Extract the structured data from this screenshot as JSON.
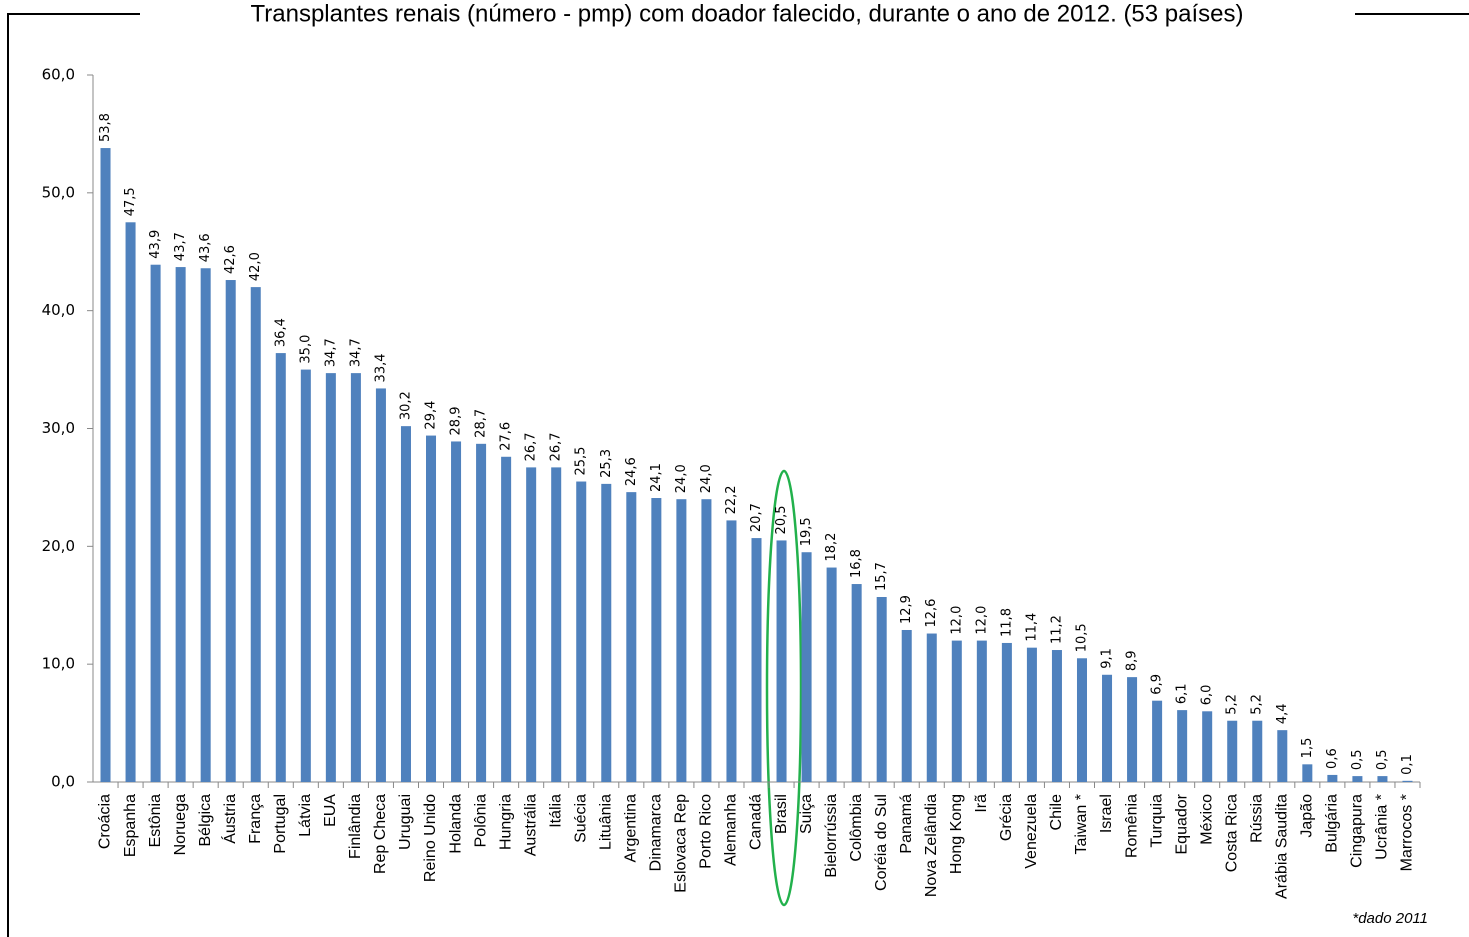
{
  "chart_data": {
    "type": "bar",
    "title": "Transplantes renais (número - pmp) com doador falecido, durante o ano de 2012. (53 países)",
    "footnote": "*dado 2011",
    "categories": [
      "Croácia",
      "Espanha",
      "Estônia",
      "Noruega",
      "Bélgica",
      "Áustria",
      "França",
      "Portugal",
      "Látvia",
      "EUA",
      "Finlândia",
      "Rep Checa",
      "Uruguai",
      "Reino Unido",
      "Holanda",
      "Polônia",
      "Hungria",
      "Austrália",
      "Itália",
      "Suécia",
      "Lituânia",
      "Argentina",
      "Dinamarca",
      "Eslovaca Rep",
      "Porto Rico",
      "Alemanha",
      "Canadá",
      "Brasil",
      "Suiça",
      "Bielorrússia",
      "Colômbia",
      "Coréia do Sul",
      "Panamá",
      "Nova Zelândia",
      "Hong Kong",
      "Irã",
      "Grécia",
      "Venezuela",
      "Chile",
      "Taiwan *",
      "Israel",
      "Romênia",
      "Turquia",
      "Equador",
      "México",
      "Costa Rica",
      "Rússia",
      "Arábia Saudita",
      "Japão",
      "Bulgária",
      "Cingapura",
      "Ucrânia *",
      "Marrocos *"
    ],
    "values": [
      53.8,
      47.5,
      43.9,
      43.7,
      43.6,
      42.6,
      42.0,
      36.4,
      35.0,
      34.7,
      34.7,
      33.4,
      30.2,
      29.4,
      28.9,
      28.7,
      27.6,
      26.7,
      26.7,
      25.5,
      25.3,
      24.6,
      24.1,
      24.0,
      24.0,
      22.2,
      20.7,
      20.5,
      19.5,
      18.2,
      16.8,
      15.7,
      12.9,
      12.6,
      12.0,
      12.0,
      11.8,
      11.4,
      11.2,
      10.5,
      9.1,
      8.9,
      6.9,
      6.1,
      6.0,
      5.2,
      5.2,
      4.4,
      1.5,
      0.6,
      0.5,
      0.5,
      0.1
    ],
    "value_labels": [
      "53,8",
      "47,5",
      "43,9",
      "43,7",
      "43,6",
      "42,6",
      "42,0",
      "36,4",
      "35,0",
      "34,7",
      "34,7",
      "33,4",
      "30,2",
      "29,4",
      "28,9",
      "28,7",
      "27,6",
      "26,7",
      "26,7",
      "25,5",
      "25,3",
      "24,6",
      "24,1",
      "24,0",
      "24,0",
      "22,2",
      "20,7",
      "20,5",
      "19,5",
      "18,2",
      "16,8",
      "15,7",
      "12,9",
      "12,6",
      "12,0",
      "12,0",
      "11,8",
      "11,4",
      "11,2",
      "10,5",
      "9,1",
      "8,9",
      "6,9",
      "6,1",
      "6,0",
      "5,2",
      "5,2",
      "4,4",
      "1,5",
      "0,6",
      "0,5",
      "0,5",
      "0,1"
    ],
    "color": "#4f81bd",
    "ylim": [
      0,
      60
    ],
    "yticks": [
      {
        "value": 0,
        "label": "0,0"
      },
      {
        "value": 10,
        "label": "10,0"
      },
      {
        "value": 20,
        "label": "20,0"
      },
      {
        "value": 30,
        "label": "30,0"
      },
      {
        "value": 40,
        "label": "40,0"
      },
      {
        "value": 50,
        "label": "50,0"
      },
      {
        "value": 60,
        "label": "60,0"
      }
    ],
    "grid": false
  }
}
